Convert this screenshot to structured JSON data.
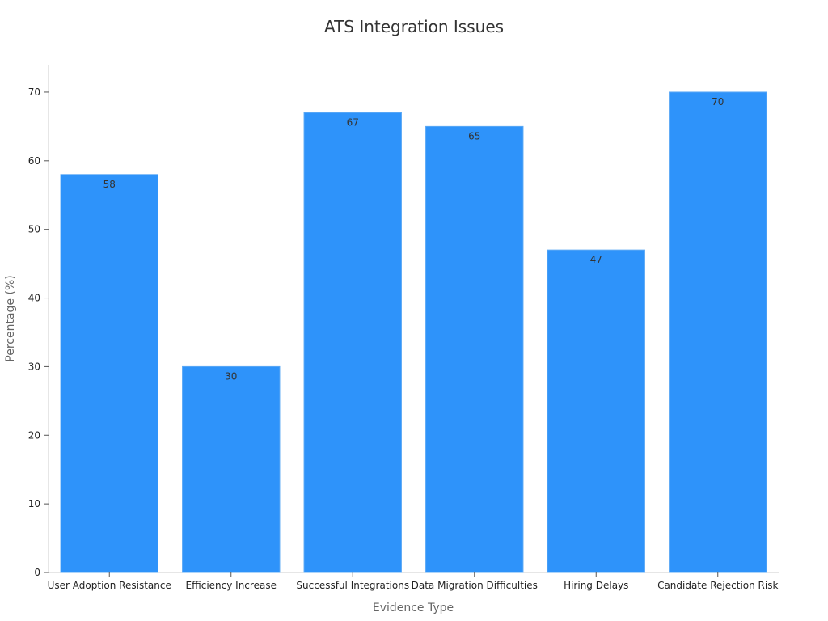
{
  "chart_data": {
    "type": "bar",
    "title": "ATS Integration Issues",
    "xlabel": "Evidence Type",
    "ylabel": "Percentage (%)",
    "categories": [
      "User Adoption Resistance",
      "Efficiency Increase",
      "Successful Integrations",
      "Data Migration Difficulties",
      "Hiring Delays",
      "Candidate Rejection Risk"
    ],
    "values": [
      58,
      30,
      67,
      65,
      47,
      70
    ],
    "ylim": [
      0,
      74
    ],
    "yticks": [
      0,
      10,
      20,
      30,
      40,
      50,
      60,
      70
    ],
    "bar_color": "#2e93fa",
    "grid": false,
    "legend": false
  }
}
